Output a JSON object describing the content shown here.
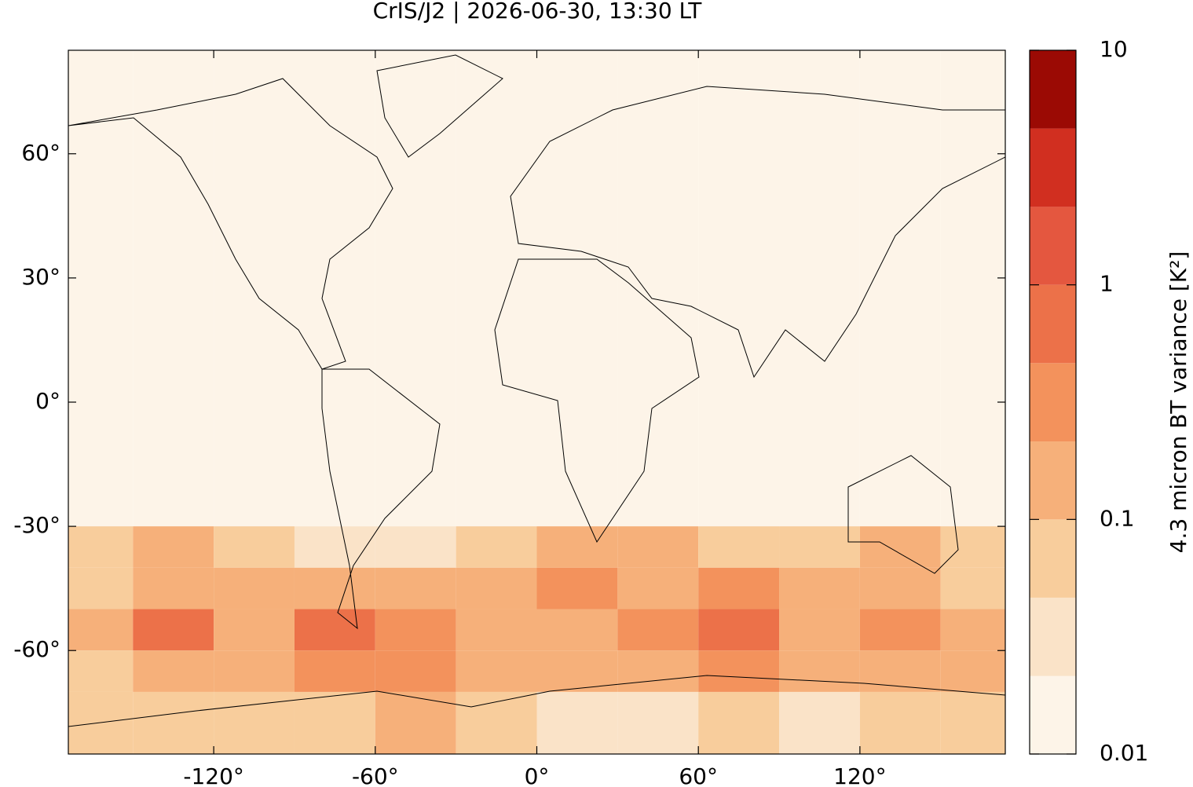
{
  "chart_data": {
    "type": "map",
    "title": "CrIS/J2 | 2026-06-30, 13:30 LT",
    "xlim": [
      -174,
      174
    ],
    "ylim": [
      -85,
      85
    ],
    "xticks": [
      {
        "value": -120,
        "label": "-120°"
      },
      {
        "value": -60,
        "label": "-60°"
      },
      {
        "value": 0,
        "label": "0°"
      },
      {
        "value": 60,
        "label": "60°"
      },
      {
        "value": 120,
        "label": "120°"
      }
    ],
    "yticks": [
      {
        "value": 60,
        "label": "60°"
      },
      {
        "value": 30,
        "label": "30°"
      },
      {
        "value": 0,
        "label": "0°"
      },
      {
        "value": -30,
        "label": "-30°"
      },
      {
        "value": -60,
        "label": "-60°"
      }
    ],
    "field": {
      "lon_edges": [
        -180,
        -150,
        -120,
        -90,
        -60,
        -30,
        0,
        30,
        60,
        90,
        120,
        150,
        180
      ],
      "lat_edges": [
        85,
        -30,
        -40,
        -50,
        -60,
        -70,
        -85
      ],
      "values": [
        [
          0.015,
          0.015,
          0.015,
          0.015,
          0.015,
          0.015,
          0.015,
          0.015,
          0.015,
          0.015,
          0.015,
          0.015
        ],
        [
          0.07,
          0.15,
          0.05,
          0.04,
          0.03,
          0.06,
          0.12,
          0.1,
          0.08,
          0.05,
          0.1,
          0.06
        ],
        [
          0.08,
          0.2,
          0.1,
          0.15,
          0.1,
          0.15,
          0.3,
          0.2,
          0.25,
          0.1,
          0.15,
          0.08
        ],
        [
          0.15,
          0.5,
          0.2,
          0.6,
          0.3,
          0.15,
          0.15,
          0.3,
          0.8,
          0.2,
          0.4,
          0.15
        ],
        [
          0.08,
          0.15,
          0.1,
          0.3,
          0.25,
          0.1,
          0.1,
          0.15,
          0.3,
          0.15,
          0.2,
          0.1
        ],
        [
          0.05,
          0.05,
          0.05,
          0.06,
          0.1,
          0.06,
          0.04,
          0.04,
          0.05,
          0.04,
          0.05,
          0.05
        ]
      ]
    },
    "colorbar": {
      "label": "4.3 micron BT variance [K²]",
      "log": true,
      "lim": [
        0.01,
        10
      ],
      "ticks": [
        0.01,
        0.1,
        1,
        10
      ],
      "levels": [
        0.01,
        0.0215,
        0.0464,
        0.1,
        0.215,
        0.464,
        1,
        2.15,
        4.64,
        10
      ],
      "colors": [
        "#fdf4e8",
        "#fae3c8",
        "#f8cd9c",
        "#f6b07a",
        "#f3925c",
        "#ec7149",
        "#e4573f",
        "#d12f20",
        "#9b0a04"
      ]
    }
  }
}
